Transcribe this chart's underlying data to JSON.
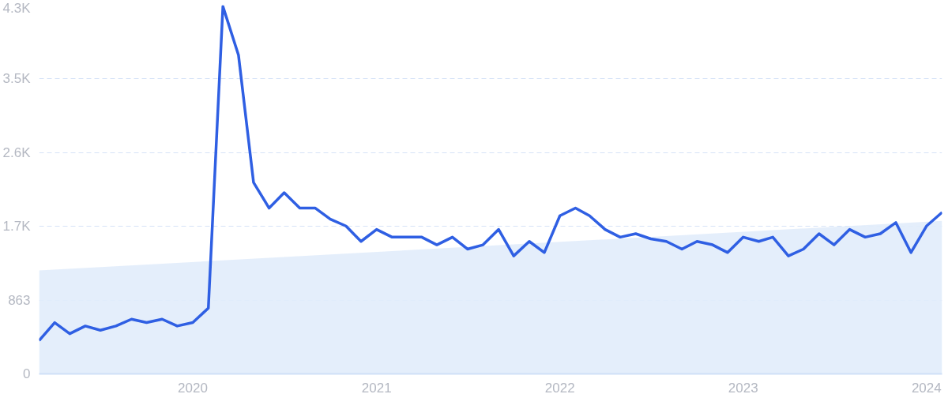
{
  "chart_data": {
    "type": "line",
    "x": [
      "2019-03",
      "2019-04",
      "2019-05",
      "2019-06",
      "2019-07",
      "2019-08",
      "2019-09",
      "2019-10",
      "2019-11",
      "2019-12",
      "2020-01",
      "2020-02",
      "2020-03",
      "2020-04",
      "2020-05",
      "2020-06",
      "2020-07",
      "2020-08",
      "2020-09",
      "2020-10",
      "2020-11",
      "2020-12",
      "2021-01",
      "2021-02",
      "2021-03",
      "2021-04",
      "2021-05",
      "2021-06",
      "2021-07",
      "2021-08",
      "2021-09",
      "2021-10",
      "2021-11",
      "2021-12",
      "2022-01",
      "2022-02",
      "2022-03",
      "2022-04",
      "2022-05",
      "2022-06",
      "2022-07",
      "2022-08",
      "2022-09",
      "2022-10",
      "2022-11",
      "2022-12",
      "2023-01",
      "2023-02",
      "2023-03",
      "2023-04",
      "2023-05",
      "2023-06",
      "2023-07",
      "2023-08",
      "2023-09",
      "2023-10",
      "2023-11",
      "2023-12",
      "2024-01",
      "2024-02"
    ],
    "series": [
      {
        "type": "area",
        "color": "#e1ecfb",
        "x": [
          "2019-03",
          "2024-02"
        ],
        "values": [
          1210,
          1790
        ]
      },
      {
        "color": "#2f5fe3",
        "values": [
          390,
          600,
          470,
          560,
          510,
          560,
          640,
          600,
          640,
          560,
          600,
          770,
          4300,
          3730,
          2240,
          1940,
          2120,
          1940,
          1940,
          1810,
          1730,
          1550,
          1690,
          1600,
          1600,
          1600,
          1510,
          1600,
          1460,
          1510,
          1690,
          1380,
          1550,
          1420,
          1850,
          1940,
          1850,
          1690,
          1600,
          1640,
          1580,
          1550,
          1460,
          1550,
          1510,
          1420,
          1600,
          1550,
          1600,
          1380,
          1460,
          1640,
          1510,
          1690,
          1600,
          1640,
          1770,
          1420,
          1730,
          1890
        ]
      }
    ],
    "xlim": [
      "2019-03",
      "2024-02"
    ],
    "xticks": [
      "2020",
      "2021",
      "2022",
      "2023",
      "2024"
    ],
    "ylim": [
      0,
      4315
    ],
    "yticks": [
      0,
      863,
      {
        "value": 1726,
        "label": "1.7K"
      },
      {
        "value": 2589,
        "label": "2.6K"
      },
      {
        "value": 3452,
        "label": "3.5K"
      },
      {
        "value": 4315,
        "label": "4.3K"
      }
    ],
    "grid": "y"
  }
}
